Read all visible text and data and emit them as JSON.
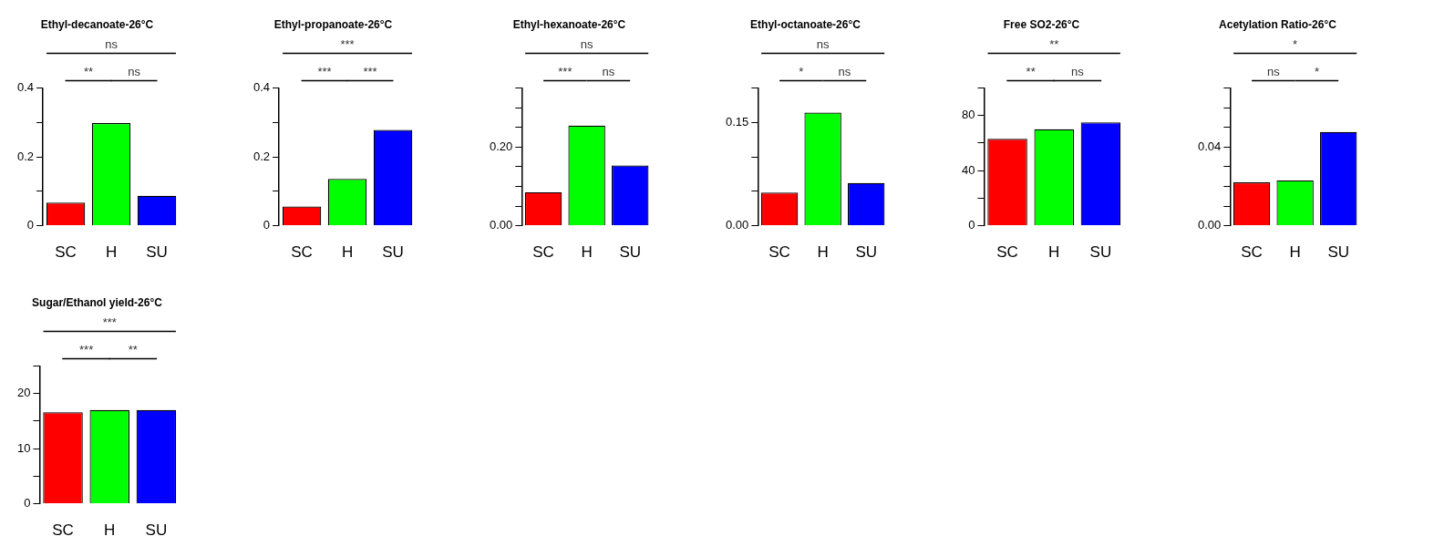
{
  "chart_data": [
    {
      "type": "bar",
      "title": "Ethyl-decanoate-26°C",
      "categories": [
        "SC",
        "H",
        "SU"
      ],
      "values": [
        0.067,
        0.298,
        0.087
      ],
      "colors": [
        "#ff0000",
        "#00ff00",
        "#0000ff"
      ],
      "ylim": [
        0,
        0.4
      ],
      "yticks": [
        0,
        {
          "value": 0.1,
          "label": null
        },
        0.2,
        {
          "value": 0.3,
          "label": null
        },
        0.4
      ],
      "annotations": [
        "ns",
        "**",
        "ns"
      ]
    },
    {
      "type": "bar",
      "title": "Ethyl-propanoate-26°C",
      "categories": [
        "SC",
        "H",
        "SU"
      ],
      "values": [
        0.056,
        0.136,
        0.278
      ],
      "colors": [
        "#ff0000",
        "#00ff00",
        "#0000ff"
      ],
      "ylim": [
        0,
        0.4
      ],
      "yticks": [
        0,
        {
          "value": 0.1,
          "label": null
        },
        0.2,
        {
          "value": 0.3,
          "label": null
        },
        0.4
      ],
      "annotations": [
        "***",
        "***",
        "***"
      ]
    },
    {
      "type": "bar",
      "title": "Ethyl-hexanoate-26°C",
      "categories": [
        "SC",
        "H",
        "SU"
      ],
      "values": [
        0.085,
        0.254,
        0.153
      ],
      "colors": [
        "#ff0000",
        "#00ff00",
        "#0000ff"
      ],
      "ylim": [
        0,
        0.35
      ],
      "yticks": [
        {
          "value": 0,
          "label": "0.00"
        },
        {
          "value": 0.05,
          "label": null
        },
        {
          "value": 0.1,
          "label": null
        },
        {
          "value": 0.15,
          "label": null
        },
        {
          "value": 0.2,
          "label": "0.20"
        },
        {
          "value": 0.25,
          "label": null
        },
        {
          "value": 0.3,
          "label": null
        },
        {
          "value": 0.35,
          "label": null
        }
      ],
      "annotations": [
        "ns",
        "***",
        "ns"
      ]
    },
    {
      "type": "bar",
      "title": "Ethyl-octanoate-26°C",
      "categories": [
        "SC",
        "H",
        "SU"
      ],
      "values": [
        0.048,
        0.164,
        0.062
      ],
      "colors": [
        "#ff0000",
        "#00ff00",
        "#0000ff"
      ],
      "ylim": [
        0,
        0.2
      ],
      "yticks": [
        {
          "value": 0,
          "label": "0.00"
        },
        {
          "value": 0.05,
          "label": null
        },
        {
          "value": 0.1,
          "label": null
        },
        0.15,
        {
          "value": 0.2,
          "label": null
        }
      ],
      "annotations": [
        "ns",
        "*",
        "ns"
      ]
    },
    {
      "type": "bar",
      "title": "Free SO2-26°C",
      "categories": [
        "SC",
        "H",
        "SU"
      ],
      "values": [
        63,
        70,
        75
      ],
      "colors": [
        "#ff0000",
        "#00ff00",
        "#0000ff"
      ],
      "ylim": [
        0,
        100
      ],
      "yticks": [
        0,
        {
          "value": 20,
          "label": null
        },
        40,
        {
          "value": 60,
          "label": null
        },
        80,
        {
          "value": 100,
          "label": null
        }
      ],
      "annotations": [
        "**",
        "**",
        "ns"
      ]
    },
    {
      "type": "bar",
      "title": "Acetylation Ratio-26°C",
      "categories": [
        "SC",
        "H",
        "SU"
      ],
      "values": [
        0.022,
        0.023,
        0.0476
      ],
      "colors": [
        "#ff0000",
        "#00ff00",
        "#0000ff"
      ],
      "ylim": [
        0,
        0.07
      ],
      "yticks": [
        {
          "value": 0,
          "label": "0.00"
        },
        {
          "value": 0.01,
          "label": null
        },
        {
          "value": 0.02,
          "label": null
        },
        {
          "value": 0.03,
          "label": null
        },
        0.04,
        {
          "value": 0.05,
          "label": null
        },
        {
          "value": 0.06,
          "label": null
        },
        {
          "value": 0.07,
          "label": null
        }
      ],
      "annotations": [
        "*",
        "ns",
        "*"
      ]
    },
    {
      "type": "bar",
      "title": "Sugar/Ethanol yield-26°C",
      "categories": [
        "SC",
        "H",
        "SU"
      ],
      "values": [
        16.6,
        17,
        17
      ],
      "colors": [
        "#ff0000",
        "#00ff00",
        "#0000ff"
      ],
      "ylim": [
        0,
        25
      ],
      "yticks": [
        0,
        {
          "value": 5,
          "label": null
        },
        10,
        {
          "value": 15,
          "label": null
        },
        20,
        {
          "value": 25,
          "label": null
        }
      ],
      "annotations": [
        "***",
        "***",
        "**"
      ]
    }
  ]
}
